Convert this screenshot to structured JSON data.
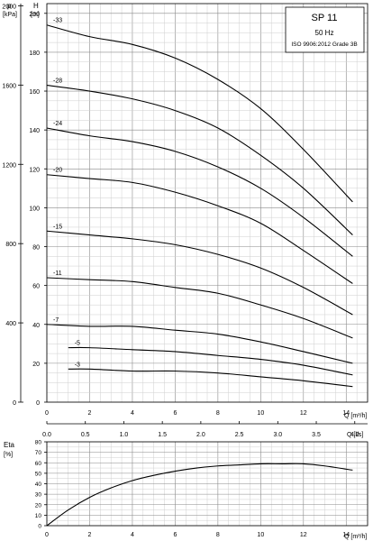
{
  "chart_data": [
    {
      "type": "line",
      "title": "SP 11",
      "subtitle_lines": [
        "50 Hz",
        "ISO 9906:2012 Grade 3B"
      ],
      "y_unit_kpa": "[kPa]",
      "y_name_kpa": "p",
      "y_unit_m": "[m]",
      "y_name_m": "H",
      "x_label_m3h": "Q [m³/h]",
      "x_label_ls": "Q [l/s]",
      "xlim": [
        0,
        15
      ],
      "ylim_m": [
        0,
        205
      ],
      "x_ticks_m3h": [
        0,
        2,
        4,
        6,
        8,
        10,
        12,
        14
      ],
      "x_tick_labels_m3h": [
        "0",
        "2",
        "4",
        "6",
        "8",
        "10",
        "12",
        "14"
      ],
      "x_ticks_ls": [
        0.0,
        0.5,
        1.0,
        1.5,
        2.0,
        2.5,
        3.0,
        3.5,
        4.0
      ],
      "x_tick_labels_ls": [
        "0.0",
        "0.5",
        "1.0",
        "1.5",
        "2.0",
        "2.5",
        "3.0",
        "3.5",
        "4.0"
      ],
      "y_ticks_m": [
        0,
        20,
        40,
        60,
        80,
        100,
        120,
        140,
        160,
        180,
        200
      ],
      "y_tick_labels_m": [
        "0",
        "20",
        "40",
        "60",
        "80",
        "100",
        "120",
        "140",
        "160",
        "180",
        "200"
      ],
      "y_ticks_kpa": [
        0,
        400,
        800,
        1200,
        1600,
        2000
      ],
      "y_tick_labels_kpa": [
        "0",
        "400",
        "800",
        "1200",
        "1600",
        "2000"
      ],
      "grid": true,
      "series": [
        {
          "name": "-33",
          "x": [
            0,
            2,
            4,
            6,
            8,
            10,
            12,
            14.3
          ],
          "y": [
            194,
            188,
            184,
            177,
            166,
            151,
            130,
            103
          ]
        },
        {
          "name": "-28",
          "x": [
            0,
            2,
            4,
            6,
            8,
            10,
            12,
            14.3
          ],
          "y": [
            163,
            160,
            156,
            150,
            141,
            127,
            110,
            86
          ]
        },
        {
          "name": "-24",
          "x": [
            0,
            2,
            4,
            6,
            8,
            10,
            12,
            14.3
          ],
          "y": [
            141,
            137,
            134,
            129,
            121,
            110,
            95,
            75
          ]
        },
        {
          "name": "-20",
          "x": [
            0,
            2,
            4,
            6,
            8,
            10,
            12,
            14.3
          ],
          "y": [
            117,
            115,
            113,
            108,
            101,
            92,
            78,
            61
          ]
        },
        {
          "name": "-15",
          "x": [
            0,
            2,
            4,
            6,
            8,
            10,
            12,
            14.3
          ],
          "y": [
            88,
            86,
            84,
            81,
            76,
            69,
            59,
            45
          ]
        },
        {
          "name": "-11",
          "x": [
            0,
            2,
            4,
            6,
            8,
            10,
            12,
            14.3
          ],
          "y": [
            64,
            63,
            62,
            59,
            56,
            50,
            43,
            33
          ]
        },
        {
          "name": "-7",
          "x": [
            0,
            2,
            4,
            6,
            8,
            10,
            12,
            14.3
          ],
          "y": [
            40,
            39,
            39,
            37,
            35,
            31,
            26,
            20
          ]
        },
        {
          "name": "-5",
          "x": [
            1,
            2,
            4,
            6,
            8,
            10,
            12,
            14.3
          ],
          "y": [
            28,
            28,
            27,
            26,
            24,
            22,
            19,
            14
          ]
        },
        {
          "name": "-3",
          "x": [
            1,
            2,
            4,
            6,
            8,
            10,
            12,
            14.3
          ],
          "y": [
            17,
            17,
            16,
            16,
            15,
            13,
            11,
            8
          ]
        }
      ]
    },
    {
      "type": "line",
      "y_name": "Eta",
      "y_unit": "[%]",
      "x_label": "Q [m³/h]",
      "xlim": [
        0,
        15
      ],
      "ylim": [
        0,
        80
      ],
      "x_ticks": [
        0,
        2,
        4,
        6,
        8,
        10,
        12,
        14
      ],
      "x_tick_labels": [
        "0",
        "2",
        "4",
        "6",
        "8",
        "10",
        "12",
        "14"
      ],
      "y_ticks": [
        0,
        10,
        20,
        30,
        40,
        50,
        60,
        70,
        80
      ],
      "y_tick_labels": [
        "0",
        "10",
        "20",
        "30",
        "40",
        "50",
        "60",
        "70",
        "80"
      ],
      "grid": true,
      "series": [
        {
          "x": [
            0,
            1,
            2,
            3,
            4,
            5,
            6,
            7,
            8,
            9,
            10,
            11,
            12,
            13,
            14.3
          ],
          "y": [
            0,
            15,
            27,
            36,
            43,
            48,
            52,
            55,
            57,
            58,
            59,
            59,
            59,
            57,
            53
          ]
        }
      ]
    }
  ]
}
